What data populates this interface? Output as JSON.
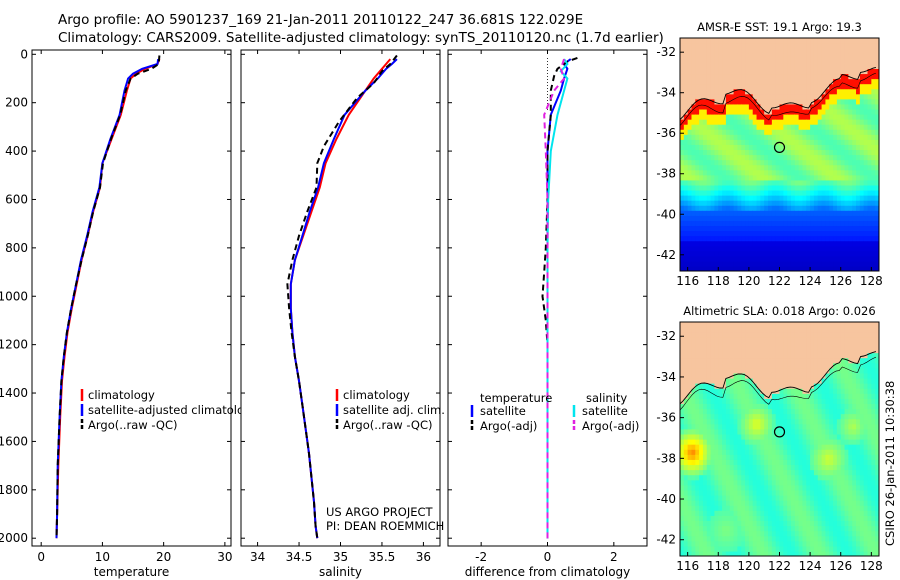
{
  "header": {
    "line1": "Argo profile: AO 5901237_169 21-Jan-2011 20110122_247 36.681S 122.029E",
    "line2": "Climatology: CARS2009. Satellite-adjusted climatology: synTS_20110120.nc (1.7d earlier)"
  },
  "credit": {
    "project_line1": "US ARGO PROJECT",
    "project_line2": "PI: DEAN ROEMMICH",
    "stamp": "CSIRO 26-Jan-2011 10:30:38"
  },
  "colors": {
    "climatology": "#ff0000",
    "satellite": "#0000ff",
    "argo": "#000000",
    "temp_diff_satellite": "#0000ff",
    "sal_diff_satellite": "#00e5ee",
    "sal_diff_argo": "#e020e0",
    "land": "#f7c59f"
  },
  "chart_data": [
    {
      "type": "line",
      "id": "temperature",
      "xlabel": "temperature",
      "ylabel": "",
      "xlim": [
        -1.5,
        31
      ],
      "ylim": [
        2050,
        0
      ],
      "xticks": [
        0,
        10,
        20,
        30
      ],
      "yticks": [
        0,
        200,
        400,
        600,
        800,
        1000,
        1200,
        1400,
        1600,
        1800,
        2000
      ],
      "legend": {
        "placement": "bottom-right",
        "items": [
          "climatology",
          "satellite-adjusted climatology",
          "Argo(..raw -QC)"
        ]
      },
      "series": [
        {
          "name": "climatology",
          "style": "solid",
          "color_key": "climatology",
          "points": [
            [
              19.3,
              20
            ],
            [
              19.0,
              40
            ],
            [
              17.0,
              60
            ],
            [
              15.5,
              80
            ],
            [
              14.6,
              100
            ],
            [
              14.0,
              150
            ],
            [
              13.0,
              250
            ],
            [
              11.5,
              350
            ],
            [
              10.0,
              450
            ],
            [
              9.6,
              550
            ],
            [
              8.5,
              650
            ],
            [
              7.6,
              750
            ],
            [
              6.6,
              850
            ],
            [
              5.8,
              950
            ],
            [
              5.0,
              1050
            ],
            [
              4.3,
              1150
            ],
            [
              3.8,
              1250
            ],
            [
              3.4,
              1350
            ],
            [
              3.1,
              1500
            ],
            [
              2.8,
              1700
            ],
            [
              2.6,
              1900
            ],
            [
              2.5,
              2000
            ]
          ]
        },
        {
          "name": "satellite-adjusted climatology",
          "style": "solid",
          "color_key": "satellite",
          "points": [
            [
              19.1,
              20
            ],
            [
              19.0,
              40
            ],
            [
              16.5,
              60
            ],
            [
              15.0,
              80
            ],
            [
              14.2,
              100
            ],
            [
              13.6,
              150
            ],
            [
              12.8,
              250
            ],
            [
              11.3,
              350
            ],
            [
              10.0,
              450
            ],
            [
              9.5,
              550
            ],
            [
              8.4,
              650
            ],
            [
              7.5,
              750
            ],
            [
              6.5,
              850
            ],
            [
              5.7,
              950
            ],
            [
              4.9,
              1050
            ],
            [
              4.2,
              1150
            ],
            [
              3.7,
              1250
            ],
            [
              3.3,
              1350
            ],
            [
              3.0,
              1500
            ],
            [
              2.7,
              1700
            ],
            [
              2.6,
              1900
            ],
            [
              2.5,
              2000
            ]
          ]
        },
        {
          "name": "Argo(..raw -QC)",
          "style": "dashed",
          "color_key": "argo",
          "points": [
            [
              19.3,
              5
            ],
            [
              19.2,
              40
            ],
            [
              18.0,
              60
            ],
            [
              15.8,
              80
            ],
            [
              14.6,
              100
            ],
            [
              13.8,
              150
            ],
            [
              12.9,
              250
            ],
            [
              11.4,
              350
            ],
            [
              10.1,
              450
            ],
            [
              9.6,
              550
            ],
            [
              8.5,
              650
            ],
            [
              7.6,
              750
            ],
            [
              6.6,
              850
            ],
            [
              5.7,
              950
            ],
            [
              4.9,
              1050
            ],
            [
              4.2,
              1150
            ],
            [
              3.7,
              1250
            ],
            [
              3.3,
              1350
            ],
            [
              3.0,
              1500
            ],
            [
              2.7,
              1700
            ],
            [
              2.6,
              1900
            ],
            [
              2.5,
              2000
            ]
          ]
        }
      ]
    },
    {
      "type": "line",
      "id": "salinity",
      "xlabel": "salinity",
      "ylabel": "",
      "xlim": [
        33.8,
        36.2
      ],
      "ylim": [
        2050,
        0
      ],
      "xticks": [
        34,
        34.5,
        35,
        35.5,
        36
      ],
      "yticks": [],
      "legend": {
        "placement": "bottom-right",
        "items": [
          "climatology",
          "satellite adj. clim.",
          "Argo(..raw -QC)"
        ]
      },
      "series": [
        {
          "name": "climatology",
          "style": "solid",
          "color_key": "climatology",
          "points": [
            [
              35.6,
              20
            ],
            [
              35.55,
              40
            ],
            [
              35.5,
              60
            ],
            [
              35.4,
              100
            ],
            [
              35.3,
              150
            ],
            [
              35.1,
              250
            ],
            [
              34.95,
              350
            ],
            [
              34.82,
              450
            ],
            [
              34.75,
              550
            ],
            [
              34.65,
              650
            ],
            [
              34.55,
              750
            ],
            [
              34.45,
              850
            ],
            [
              34.4,
              950
            ],
            [
              34.4,
              1050
            ],
            [
              34.42,
              1150
            ],
            [
              34.45,
              1250
            ],
            [
              34.5,
              1350
            ],
            [
              34.54,
              1450
            ],
            [
              34.58,
              1550
            ],
            [
              34.62,
              1650
            ],
            [
              34.65,
              1750
            ],
            [
              34.68,
              1850
            ],
            [
              34.7,
              1950
            ],
            [
              34.72,
              2000
            ]
          ]
        },
        {
          "name": "satellite adj. clim.",
          "style": "solid",
          "color_key": "satellite",
          "points": [
            [
              35.68,
              20
            ],
            [
              35.62,
              40
            ],
            [
              35.55,
              60
            ],
            [
              35.45,
              100
            ],
            [
              35.3,
              150
            ],
            [
              35.05,
              250
            ],
            [
              34.92,
              350
            ],
            [
              34.8,
              450
            ],
            [
              34.73,
              550
            ],
            [
              34.63,
              650
            ],
            [
              34.54,
              750
            ],
            [
              34.45,
              850
            ],
            [
              34.4,
              950
            ],
            [
              34.4,
              1050
            ],
            [
              34.42,
              1150
            ],
            [
              34.45,
              1250
            ],
            [
              34.5,
              1350
            ],
            [
              34.54,
              1450
            ],
            [
              34.58,
              1550
            ],
            [
              34.62,
              1650
            ],
            [
              34.65,
              1750
            ],
            [
              34.68,
              1850
            ],
            [
              34.7,
              1950
            ],
            [
              34.72,
              2000
            ]
          ]
        },
        {
          "name": "Argo(..raw -QC)",
          "style": "dashed",
          "color_key": "argo",
          "points": [
            [
              35.68,
              5
            ],
            [
              35.6,
              40
            ],
            [
              35.5,
              70
            ],
            [
              35.4,
              120
            ],
            [
              35.2,
              180
            ],
            [
              34.98,
              280
            ],
            [
              34.8,
              380
            ],
            [
              34.72,
              450
            ],
            [
              34.71,
              550
            ],
            [
              34.6,
              650
            ],
            [
              34.5,
              750
            ],
            [
              34.42,
              850
            ],
            [
              34.36,
              950
            ],
            [
              34.38,
              1050
            ],
            [
              34.41,
              1150
            ],
            [
              34.45,
              1250
            ],
            [
              34.5,
              1350
            ],
            [
              34.54,
              1450
            ],
            [
              34.58,
              1550
            ],
            [
              34.62,
              1650
            ],
            [
              34.65,
              1750
            ],
            [
              34.68,
              1850
            ],
            [
              34.7,
              1950
            ],
            [
              34.72,
              2000
            ]
          ]
        }
      ]
    },
    {
      "type": "line",
      "id": "difference",
      "xlabel": "difference from climatology",
      "ylabel": "",
      "xlim": [
        -3,
        3
      ],
      "ylim": [
        2050,
        0
      ],
      "xticks": [
        -2,
        0,
        2
      ],
      "yticks": [],
      "legend": {
        "placement": "bottom",
        "groups": [
          {
            "title": "temperature",
            "items": [
              "satellite",
              "Argo(-adj)"
            ]
          },
          {
            "title": "salinity",
            "items": [
              "satellite",
              "Argo(-adj)"
            ]
          }
        ]
      },
      "series": [
        {
          "name": "satellite",
          "group": "temperature",
          "style": "solid",
          "color_key": "temp_diff_satellite",
          "points": [
            [
              0.7,
              20
            ],
            [
              0.5,
              40
            ],
            [
              0.6,
              60
            ],
            [
              0.5,
              100
            ],
            [
              0.4,
              150
            ],
            [
              0.1,
              250
            ],
            [
              0.0,
              400
            ],
            [
              0.0,
              600
            ],
            [
              0.0,
              800
            ],
            [
              0.0,
              1000
            ],
            [
              0.0,
              1200
            ],
            [
              0.0,
              1400
            ],
            [
              0.0,
              1600
            ],
            [
              0.0,
              1800
            ],
            [
              0.0,
              2000
            ]
          ]
        },
        {
          "name": "Argo(-adj)",
          "group": "temperature",
          "style": "dashed",
          "color_key": "argo",
          "points": [
            [
              0.9,
              15
            ],
            [
              0.6,
              30
            ],
            [
              0.3,
              60
            ],
            [
              0.2,
              90
            ],
            [
              0.1,
              150
            ],
            [
              0.1,
              250
            ],
            [
              0.0,
              400
            ],
            [
              0.0,
              600
            ],
            [
              -0.05,
              800
            ],
            [
              -0.1,
              900
            ],
            [
              -0.15,
              1000
            ],
            [
              -0.05,
              1100
            ],
            [
              0.0,
              1200
            ],
            [
              0.0,
              1400
            ],
            [
              0.0,
              1600
            ],
            [
              0.0,
              1800
            ],
            [
              0.0,
              2000
            ]
          ]
        },
        {
          "name": "satellite",
          "group": "salinity",
          "style": "solid",
          "color_key": "sal_diff_satellite",
          "points": [
            [
              0.5,
              20
            ],
            [
              0.6,
              40
            ],
            [
              0.4,
              70
            ],
            [
              0.6,
              100
            ],
            [
              0.5,
              150
            ],
            [
              0.3,
              250
            ],
            [
              0.1,
              400
            ],
            [
              0.02,
              600
            ],
            [
              0.0,
              800
            ],
            [
              0.0,
              1000
            ],
            [
              0.0,
              1200
            ],
            [
              0.0,
              1400
            ],
            [
              0.0,
              1600
            ],
            [
              0.0,
              1800
            ],
            [
              0.0,
              2000
            ]
          ]
        },
        {
          "name": "Argo(-adj)",
          "group": "salinity",
          "style": "dashed",
          "color_key": "sal_diff_argo",
          "points": [
            [
              0.5,
              20
            ],
            [
              0.4,
              60
            ],
            [
              0.5,
              100
            ],
            [
              0.2,
              150
            ],
            [
              -0.1,
              250
            ],
            [
              -0.05,
              400
            ],
            [
              0.0,
              600
            ],
            [
              0.0,
              800
            ],
            [
              0.0,
              1000
            ],
            [
              0.0,
              1200
            ],
            [
              0.0,
              1400
            ],
            [
              0.0,
              1600
            ],
            [
              0.0,
              1800
            ],
            [
              0.0,
              2000
            ]
          ]
        }
      ]
    },
    {
      "type": "heatmap",
      "id": "sst-map",
      "title": "AMSR-E SST: 19.1 Argo: 19.3",
      "xlim": [
        115.5,
        128.5
      ],
      "ylim": [
        -42.8,
        -31.3
      ],
      "xticks": [
        116,
        118,
        120,
        122,
        124,
        126,
        128
      ],
      "yticks": [
        -32,
        -34,
        -36,
        -38,
        -40,
        -42
      ],
      "marker": [
        122.0,
        -36.7
      ]
    },
    {
      "type": "heatmap",
      "id": "sla-map",
      "title": "Altimetric SLA: 0.018 Argo: 0.026",
      "xlim": [
        115.5,
        128.5
      ],
      "ylim": [
        -42.8,
        -31.3
      ],
      "xticks": [
        116,
        118,
        120,
        122,
        124,
        126,
        128
      ],
      "yticks": [
        -32,
        -34,
        -36,
        -38,
        -40,
        -42
      ],
      "marker": [
        122.0,
        -36.7
      ]
    }
  ]
}
